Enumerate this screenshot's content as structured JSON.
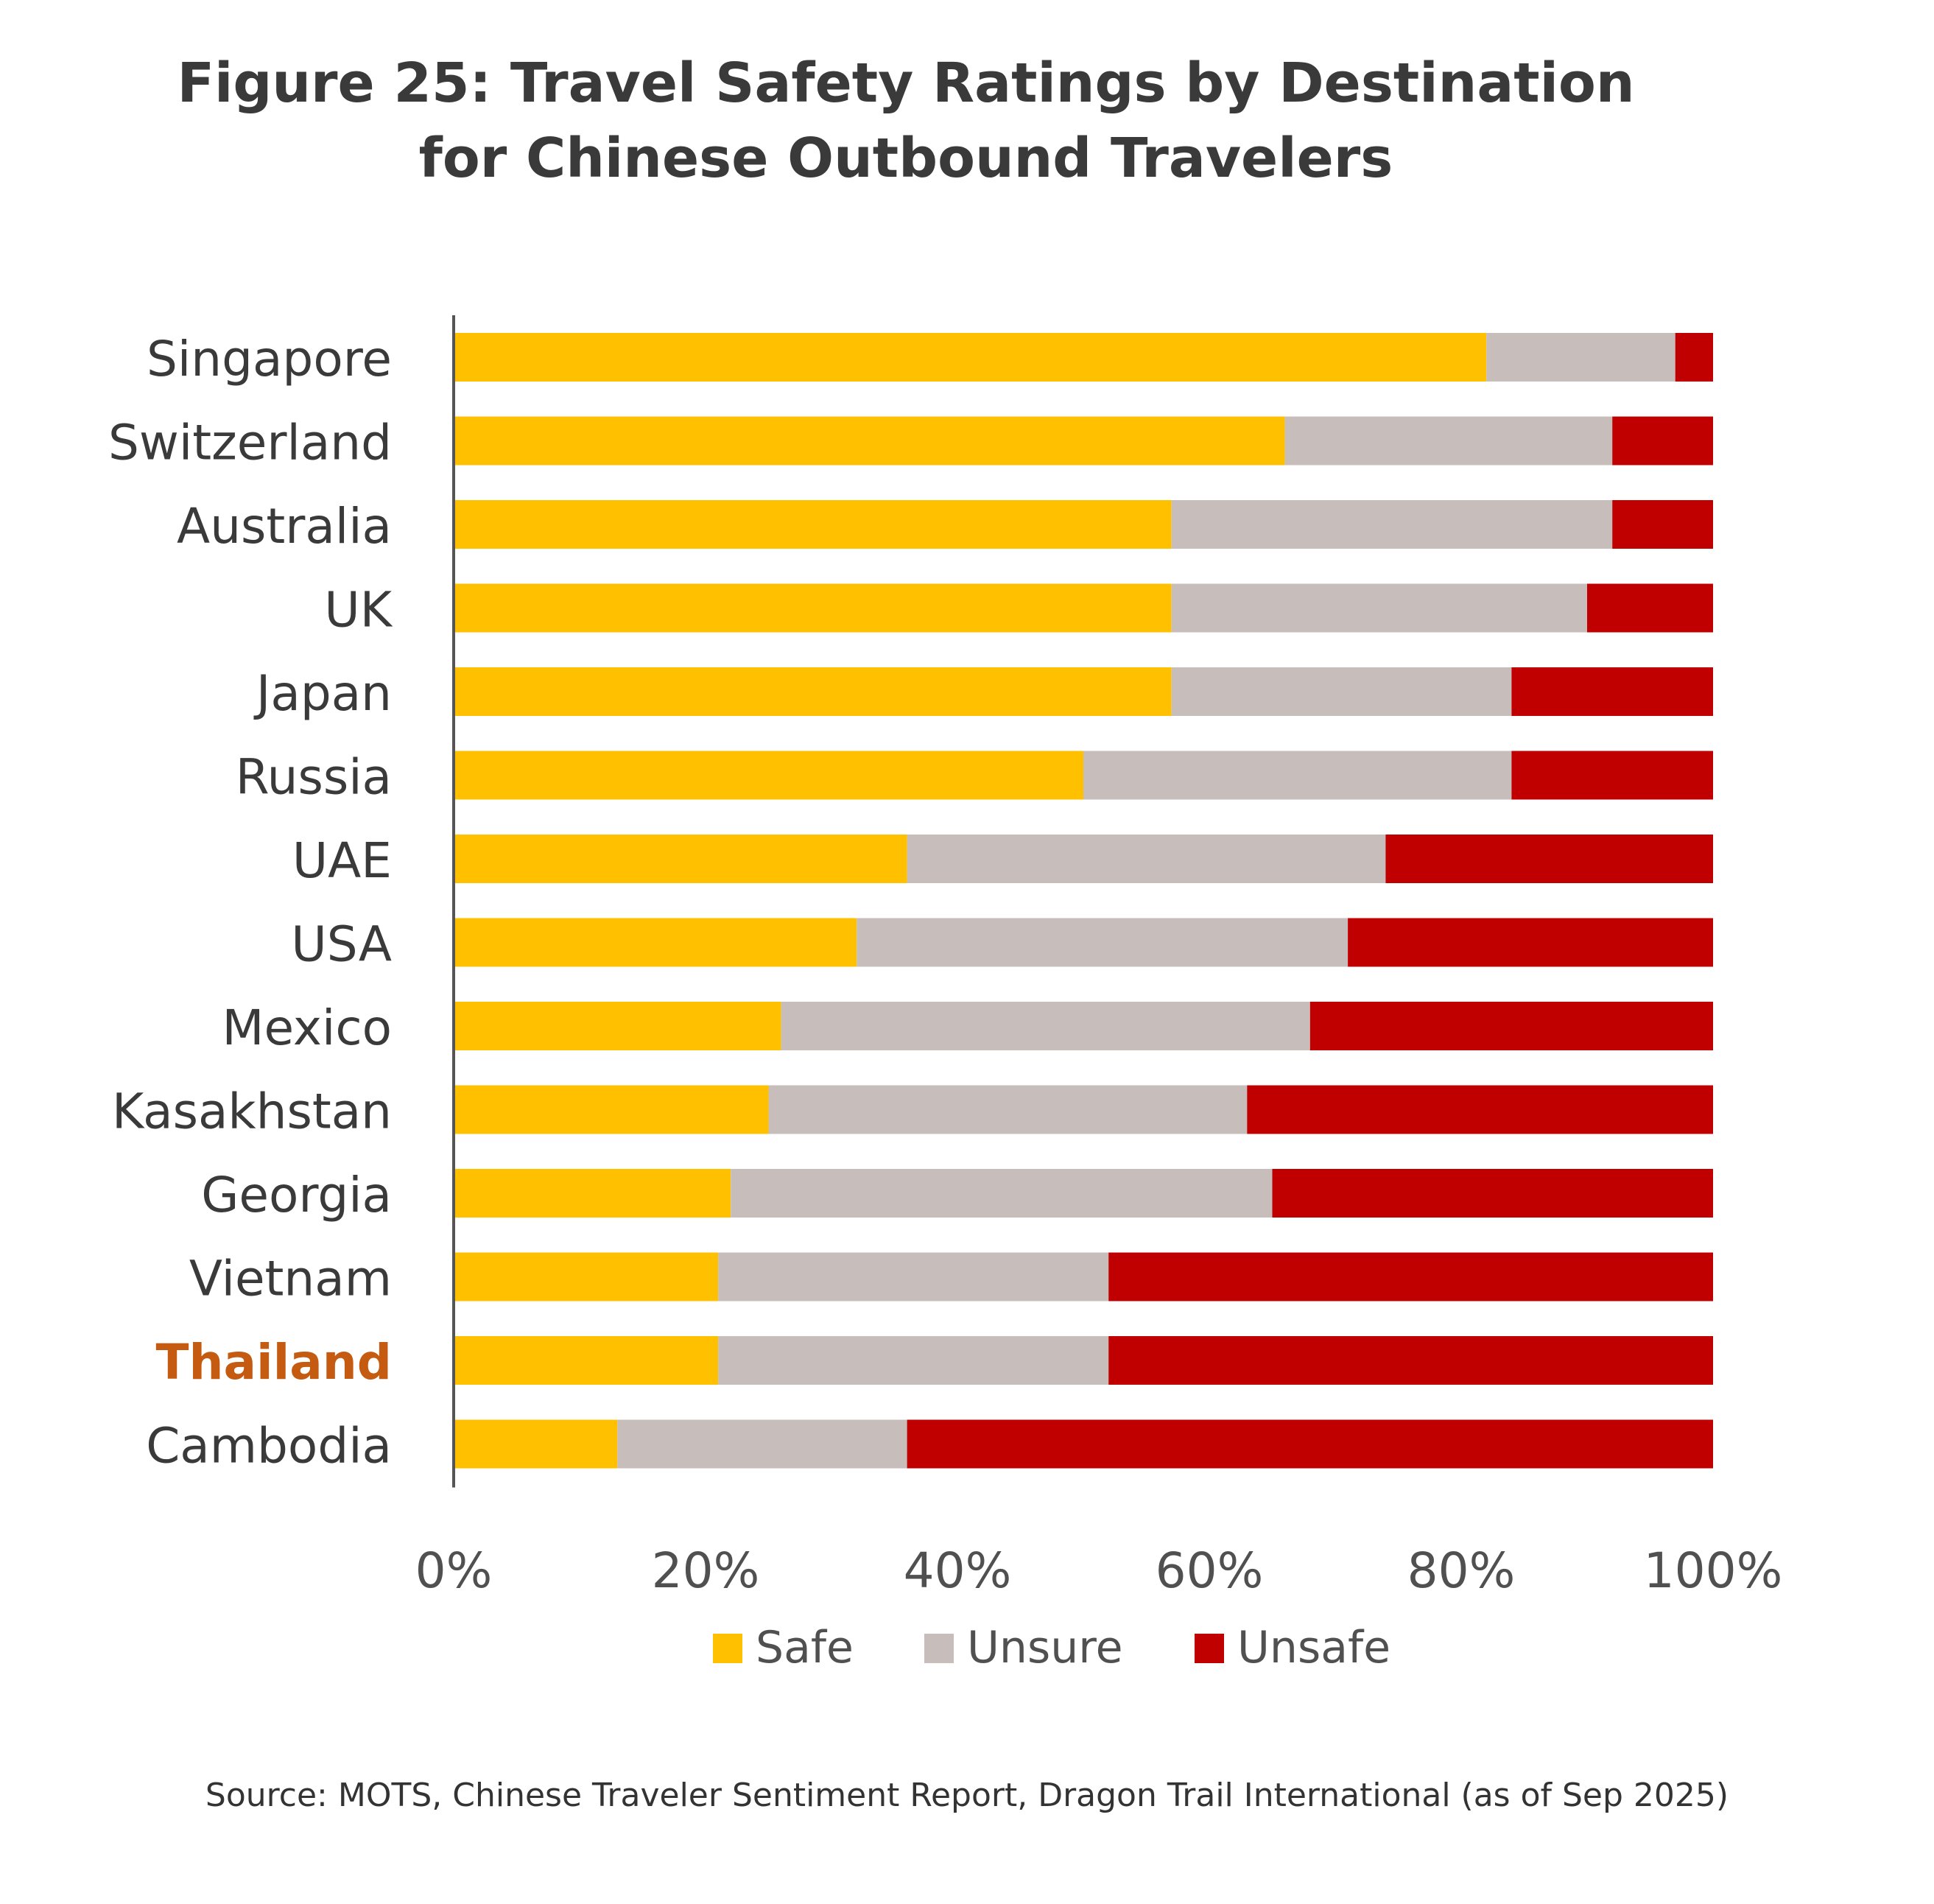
{
  "title": {
    "line1": "Figure 25: Travel Safety Ratings by Destination",
    "line2": "for Chinese Outbound Travelers"
  },
  "source": "Source: MOTS, Chinese Traveler Sentiment Report, Dragon Trail International (as of Sep 2025)",
  "chart_data": {
    "type": "bar",
    "orientation": "horizontal",
    "stacked": true,
    "categories": [
      "Singapore",
      "Switzerland",
      "Australia",
      "UK",
      "Japan",
      "Russia",
      "UAE",
      "USA",
      "Mexico",
      "Kasakhstan",
      "Georgia",
      "Vietnam",
      "Thailand",
      "Cambodia"
    ],
    "highlight_category": "Thailand",
    "highlight_color": "#c55a11",
    "series": [
      {
        "name": "Safe",
        "color": "#ffc000",
        "values": [
          82,
          66,
          57,
          57,
          57,
          50,
          36,
          32,
          26,
          25,
          22,
          21,
          21,
          13
        ]
      },
      {
        "name": "Unsure",
        "color": "#c7bebb",
        "values": [
          15,
          26,
          35,
          33,
          27,
          34,
          38,
          39,
          42,
          38,
          43,
          31,
          31,
          23
        ]
      },
      {
        "name": "Unsafe",
        "color": "#c00000",
        "values": [
          3,
          8,
          8,
          10,
          16,
          16,
          26,
          29,
          32,
          37,
          35,
          48,
          48,
          64
        ]
      }
    ],
    "xlim": [
      0,
      100
    ],
    "xticks": [
      "0%",
      "20%",
      "40%",
      "60%",
      "80%",
      "100%"
    ],
    "grid": false,
    "legend": "bottom"
  }
}
